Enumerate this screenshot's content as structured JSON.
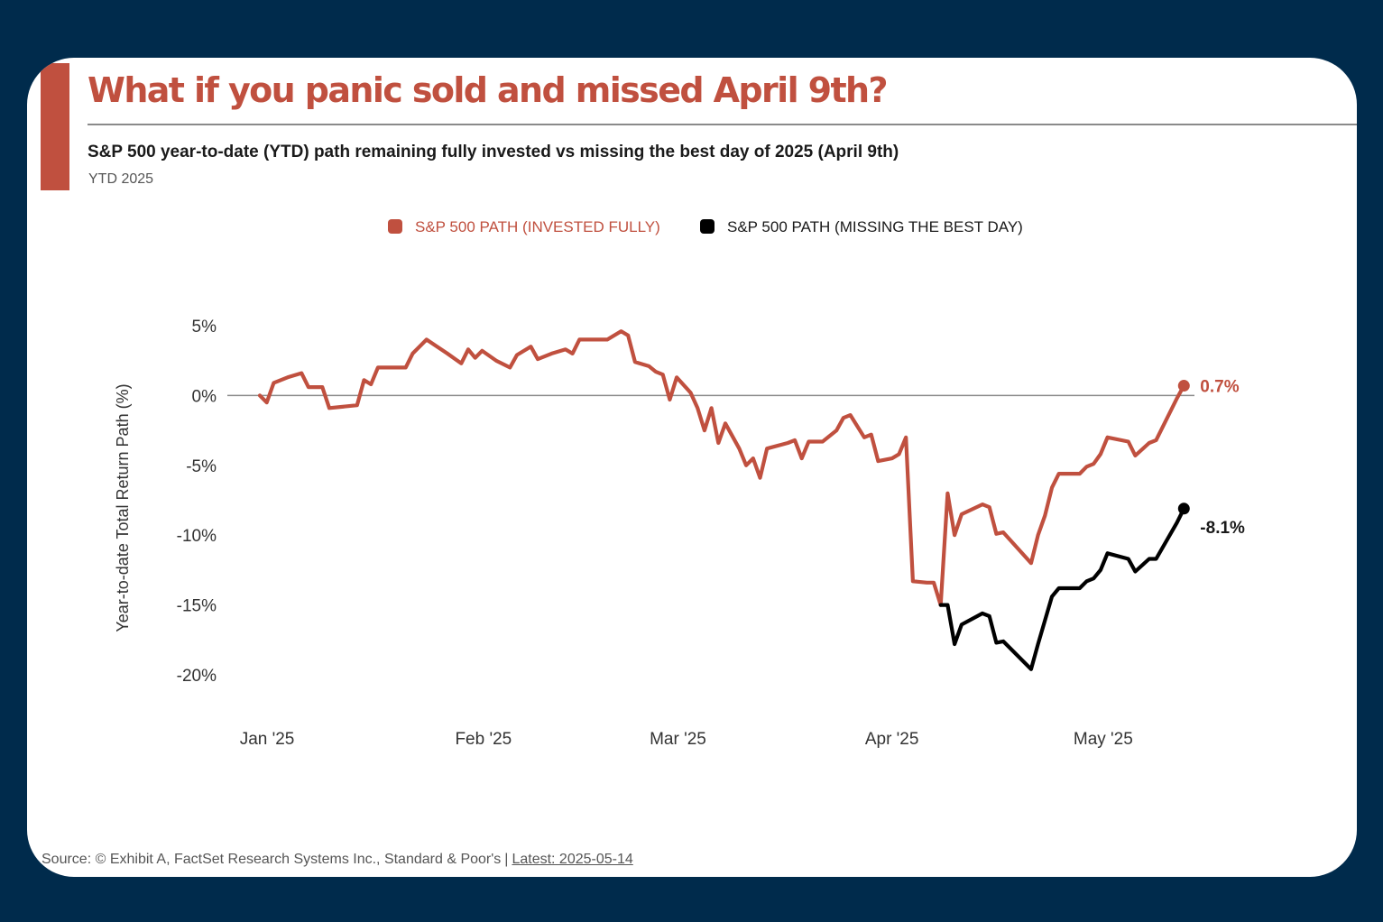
{
  "header": {
    "title": "What if you panic sold and missed April 9th?",
    "subtitle": "S&P 500 year-to-date (YTD) path remaining fully invested vs missing the best day of 2025 (April 9th)",
    "period": "YTD 2025"
  },
  "footer": {
    "source": "Source: © Exhibit A, FactSet Research Systems Inc., Standard & Poor's",
    "separator": "|",
    "latest": "Latest: 2025-05-14"
  },
  "colors": {
    "invested": "#c0503f",
    "missing": "#000000",
    "background": "#002b4c",
    "zero_line": "#8a8a8a"
  },
  "chart_data": {
    "type": "line",
    "ylabel": "Year-to-date Total Return Path (%)",
    "ylim": [
      -22,
      7
    ],
    "yticks": [
      5,
      0,
      -5,
      -10,
      -15,
      -20
    ],
    "ytick_labels": [
      "5%",
      "0%",
      "-5%",
      "-10%",
      "-15%",
      "-20%"
    ],
    "x_range": [
      "2024-12-31",
      "2025-05-14"
    ],
    "xticks": [
      {
        "date": "2025-01-01",
        "label": "Jan '25"
      },
      {
        "date": "2025-02-01",
        "label": "Feb '25"
      },
      {
        "date": "2025-03-01",
        "label": "Mar '25"
      },
      {
        "date": "2025-04-01",
        "label": "Apr '25"
      },
      {
        "date": "2025-05-01",
        "label": "May '25"
      }
    ],
    "legend_position": "top-center",
    "series": [
      {
        "name": "S&P 500 PATH (INVESTED FULLY)",
        "color": "#c0503f",
        "end_label": "0.7%",
        "points": [
          [
            "2024-12-31",
            0.0
          ],
          [
            "2025-01-01",
            -0.5
          ],
          [
            "2025-01-02",
            0.9
          ],
          [
            "2025-01-04",
            1.3
          ],
          [
            "2025-01-06",
            1.6
          ],
          [
            "2025-01-07",
            0.6
          ],
          [
            "2025-01-09",
            0.6
          ],
          [
            "2025-01-10",
            -0.9
          ],
          [
            "2025-01-14",
            -0.7
          ],
          [
            "2025-01-15",
            1.1
          ],
          [
            "2025-01-16",
            0.8
          ],
          [
            "2025-01-17",
            2.0
          ],
          [
            "2025-01-21",
            2.0
          ],
          [
            "2025-01-22",
            3.0
          ],
          [
            "2025-01-24",
            4.0
          ],
          [
            "2025-01-27",
            3.0
          ],
          [
            "2025-01-29",
            2.3
          ],
          [
            "2025-01-30",
            3.3
          ],
          [
            "2025-01-31",
            2.7
          ],
          [
            "2025-02-01",
            3.2
          ],
          [
            "2025-02-03",
            2.5
          ],
          [
            "2025-02-05",
            2.0
          ],
          [
            "2025-02-06",
            2.9
          ],
          [
            "2025-02-08",
            3.5
          ],
          [
            "2025-02-09",
            2.6
          ],
          [
            "2025-02-11",
            3.0
          ],
          [
            "2025-02-13",
            3.3
          ],
          [
            "2025-02-14",
            3.0
          ],
          [
            "2025-02-15",
            4.0
          ],
          [
            "2025-02-18",
            4.0
          ],
          [
            "2025-02-19",
            4.0
          ],
          [
            "2025-02-21",
            4.6
          ],
          [
            "2025-02-22",
            4.3
          ],
          [
            "2025-02-23",
            2.4
          ],
          [
            "2025-02-25",
            2.1
          ],
          [
            "2025-02-26",
            1.7
          ],
          [
            "2025-02-27",
            1.5
          ],
          [
            "2025-02-28",
            -0.3
          ],
          [
            "2025-03-01",
            1.3
          ],
          [
            "2025-03-03",
            0.2
          ],
          [
            "2025-03-04",
            -0.9
          ],
          [
            "2025-03-05",
            -2.5
          ],
          [
            "2025-03-06",
            -0.9
          ],
          [
            "2025-03-07",
            -3.4
          ],
          [
            "2025-03-08",
            -2.0
          ],
          [
            "2025-03-10",
            -3.8
          ],
          [
            "2025-03-11",
            -5.0
          ],
          [
            "2025-03-12",
            -4.5
          ],
          [
            "2025-03-13",
            -5.9
          ],
          [
            "2025-03-14",
            -3.8
          ],
          [
            "2025-03-17",
            -3.4
          ],
          [
            "2025-03-18",
            -3.2
          ],
          [
            "2025-03-19",
            -4.5
          ],
          [
            "2025-03-20",
            -3.3
          ],
          [
            "2025-03-22",
            -3.3
          ],
          [
            "2025-03-24",
            -2.5
          ],
          [
            "2025-03-25",
            -1.6
          ],
          [
            "2025-03-26",
            -1.4
          ],
          [
            "2025-03-28",
            -3.0
          ],
          [
            "2025-03-29",
            -2.8
          ],
          [
            "2025-03-30",
            -4.7
          ],
          [
            "2025-04-01",
            -4.5
          ],
          [
            "2025-04-02",
            -4.2
          ],
          [
            "2025-04-03",
            -3.0
          ],
          [
            "2025-04-04",
            -13.3
          ],
          [
            "2025-04-06",
            -13.4
          ],
          [
            "2025-04-07",
            -13.4
          ],
          [
            "2025-04-08",
            -15.0
          ],
          [
            "2025-04-09",
            -7.0
          ],
          [
            "2025-04-10",
            -10.0
          ],
          [
            "2025-04-11",
            -8.5
          ],
          [
            "2025-04-14",
            -7.8
          ],
          [
            "2025-04-15",
            -8.0
          ],
          [
            "2025-04-16",
            -9.9
          ],
          [
            "2025-04-17",
            -9.8
          ],
          [
            "2025-04-21",
            -12.0
          ],
          [
            "2025-04-22",
            -10.0
          ],
          [
            "2025-04-23",
            -8.6
          ],
          [
            "2025-04-24",
            -6.6
          ],
          [
            "2025-04-25",
            -5.6
          ],
          [
            "2025-04-28",
            -5.6
          ],
          [
            "2025-04-29",
            -5.1
          ],
          [
            "2025-04-30",
            -4.9
          ],
          [
            "2025-05-01",
            -4.2
          ],
          [
            "2025-05-02",
            -3.0
          ],
          [
            "2025-05-05",
            -3.3
          ],
          [
            "2025-05-06",
            -4.3
          ],
          [
            "2025-05-08",
            -3.4
          ],
          [
            "2025-05-09",
            -3.2
          ],
          [
            "2025-05-12",
            -0.2
          ],
          [
            "2025-05-13",
            0.7
          ]
        ]
      },
      {
        "name": "S&P 500 PATH (MISSING THE BEST DAY)",
        "color": "#000000",
        "end_label": "-8.1%",
        "points": [
          [
            "2025-04-08",
            -15.0
          ],
          [
            "2025-04-09",
            -15.0
          ],
          [
            "2025-04-10",
            -17.8
          ],
          [
            "2025-04-11",
            -16.4
          ],
          [
            "2025-04-14",
            -15.6
          ],
          [
            "2025-04-15",
            -15.8
          ],
          [
            "2025-04-16",
            -17.7
          ],
          [
            "2025-04-17",
            -17.6
          ],
          [
            "2025-04-21",
            -19.6
          ],
          [
            "2025-04-22",
            -17.8
          ],
          [
            "2025-04-23",
            -16.1
          ],
          [
            "2025-04-24",
            -14.4
          ],
          [
            "2025-04-25",
            -13.8
          ],
          [
            "2025-04-28",
            -13.8
          ],
          [
            "2025-04-29",
            -13.3
          ],
          [
            "2025-04-30",
            -13.1
          ],
          [
            "2025-05-01",
            -12.5
          ],
          [
            "2025-05-02",
            -11.3
          ],
          [
            "2025-05-05",
            -11.7
          ],
          [
            "2025-05-06",
            -12.6
          ],
          [
            "2025-05-08",
            -11.7
          ],
          [
            "2025-05-09",
            -11.7
          ],
          [
            "2025-05-12",
            -9.1
          ],
          [
            "2025-05-13",
            -8.1
          ]
        ]
      }
    ]
  }
}
